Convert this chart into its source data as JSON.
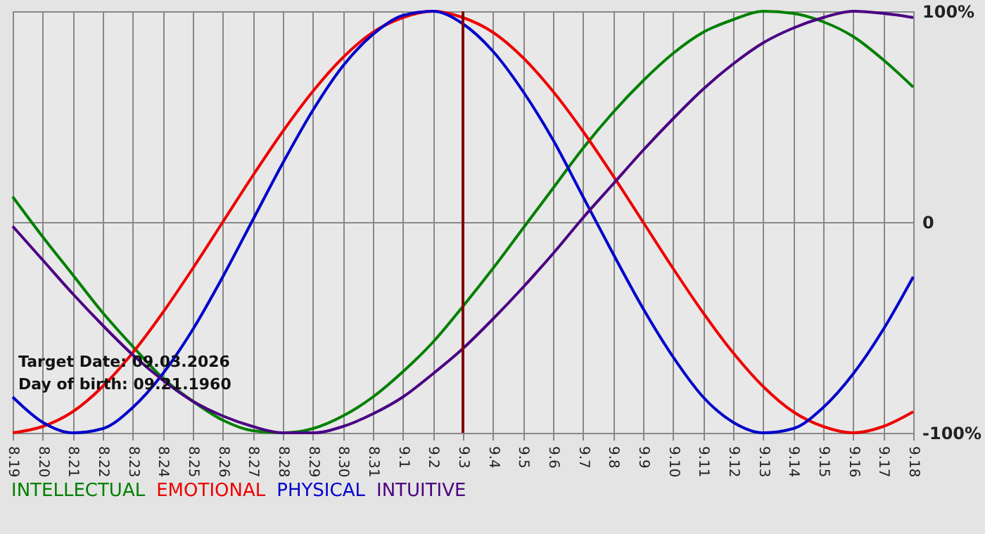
{
  "chart_data": {
    "type": "line",
    "categories": [
      "8.19",
      "8.20",
      "8.21",
      "8.22",
      "8.23",
      "8.24",
      "8.25",
      "8.26",
      "8.27",
      "8.28",
      "8.29",
      "8.30",
      "8.31",
      "9.1",
      "9.2",
      "9.3",
      "9.4",
      "9.5",
      "9.6",
      "9.7",
      "9.8",
      "9.9",
      "9.10",
      "9.11",
      "9.12",
      "9.13",
      "9.14",
      "9.15",
      "9.16",
      "9.17",
      "9.18"
    ],
    "series": [
      {
        "name": "INTELLECTUAL",
        "color": "#008000",
        "values": [
          12,
          -7,
          -25,
          -43,
          -59,
          -74,
          -85,
          -94,
          -99,
          -100,
          -98,
          -92,
          -83,
          -71,
          -57,
          -40,
          -22,
          -3,
          16,
          35,
          52,
          67,
          80,
          90,
          96,
          100,
          99,
          95,
          88,
          77,
          64
        ]
      },
      {
        "name": "EMOTIONAL",
        "color": "#ee0000",
        "values": [
          -100,
          -97,
          -90,
          -78,
          -62,
          -43,
          -22,
          0,
          22,
          43,
          62,
          78,
          90,
          97,
          100,
          97,
          90,
          78,
          62,
          43,
          22,
          0,
          -22,
          -43,
          -62,
          -78,
          -90,
          -97,
          -100,
          -97,
          -90
        ]
      },
      {
        "name": "PHYSICAL",
        "color": "#0000cc",
        "values": [
          -83,
          -95,
          -100,
          -98,
          -88,
          -72,
          -51,
          -26,
          1,
          28,
          53,
          74,
          89,
          98,
          100,
          94,
          81,
          62,
          39,
          12,
          -15,
          -41,
          -64,
          -83,
          -95,
          -100,
          -98,
          -88,
          -72,
          -51,
          -26
        ]
      },
      {
        "name": "INTUITIVE",
        "color": "#4b0082",
        "values": [
          -2,
          -18,
          -34,
          -49,
          -63,
          -75,
          -85,
          -92,
          -97,
          -100,
          -100,
          -97,
          -91,
          -83,
          -72,
          -60,
          -46,
          -31,
          -15,
          2,
          18,
          34,
          49,
          63,
          75,
          85,
          92,
          97,
          100,
          99,
          97
        ]
      }
    ],
    "ylim": [
      -100,
      100
    ],
    "yticks": [
      {
        "value": -100,
        "label": "-100%"
      },
      0,
      {
        "value": 100,
        "label": "100%"
      }
    ],
    "grid": true,
    "legend": "bottom left",
    "ref_lines": [
      {
        "axis": "x",
        "value": "9.3",
        "color": "#800000"
      }
    ],
    "annotations": [
      "Target Date: 09.03.2026",
      "Day of birth: 09.21.1960"
    ]
  }
}
